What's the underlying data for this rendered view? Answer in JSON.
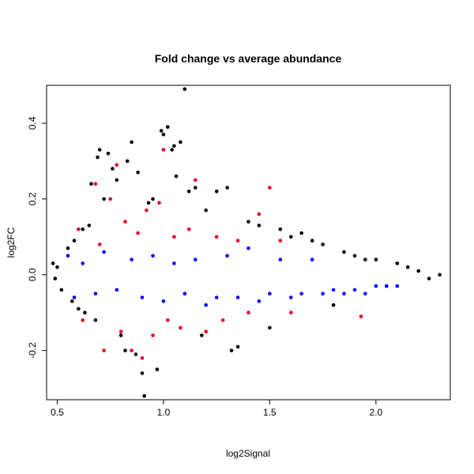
{
  "chart_data": {
    "type": "scatter",
    "title": "Fold change vs average abundance",
    "xlabel": "log2Signal",
    "ylabel": "log2FC",
    "xlim": [
      0.45,
      2.35
    ],
    "ylim": [
      -0.33,
      0.5
    ],
    "x_ticks": [
      0.5,
      1.0,
      1.5,
      2.0
    ],
    "x_tick_labels": [
      "0.5",
      "1.0",
      "1.5",
      "2.0"
    ],
    "y_ticks": [
      -0.2,
      0.0,
      0.2,
      0.4
    ],
    "y_tick_labels": [
      "-0.2",
      "0.0",
      "0.2",
      "0.4"
    ],
    "grid": false,
    "legend": "none",
    "colors": {
      "black": "#000000",
      "blue": "#0000ff",
      "red": "#e8002a"
    },
    "series": [
      {
        "color": "black",
        "points": [
          [
            0.48,
            0.03
          ],
          [
            0.49,
            -0.01
          ],
          [
            0.5,
            0.02
          ],
          [
            0.52,
            -0.04
          ],
          [
            0.55,
            0.07
          ],
          [
            0.57,
            -0.07
          ],
          [
            0.58,
            0.09
          ],
          [
            0.6,
            -0.09
          ],
          [
            0.62,
            0.12
          ],
          [
            0.63,
            -0.1
          ],
          [
            0.65,
            0.13
          ],
          [
            0.66,
            0.24
          ],
          [
            0.68,
            -0.12
          ],
          [
            0.69,
            0.31
          ],
          [
            0.7,
            0.33
          ],
          [
            0.72,
            0.2
          ],
          [
            0.74,
            0.32
          ],
          [
            0.76,
            0.28
          ],
          [
            0.78,
            0.25
          ],
          [
            0.8,
            -0.16
          ],
          [
            0.82,
            -0.2
          ],
          [
            0.83,
            0.3
          ],
          [
            0.85,
            0.35
          ],
          [
            0.87,
            -0.21
          ],
          [
            0.88,
            0.27
          ],
          [
            0.9,
            -0.26
          ],
          [
            0.91,
            -0.32
          ],
          [
            0.93,
            0.19
          ],
          [
            0.95,
            0.2
          ],
          [
            0.97,
            -0.25
          ],
          [
            0.99,
            0.38
          ],
          [
            1.0,
            0.37
          ],
          [
            1.02,
            0.39
          ],
          [
            1.04,
            0.33
          ],
          [
            1.05,
            0.34
          ],
          [
            1.06,
            0.26
          ],
          [
            1.08,
            0.35
          ],
          [
            1.1,
            0.49
          ],
          [
            1.12,
            0.22
          ],
          [
            1.15,
            0.23
          ],
          [
            1.18,
            -0.16
          ],
          [
            1.2,
            0.17
          ],
          [
            1.25,
            0.22
          ],
          [
            1.3,
            0.23
          ],
          [
            1.32,
            -0.2
          ],
          [
            1.35,
            -0.19
          ],
          [
            1.4,
            0.14
          ],
          [
            1.45,
            0.13
          ],
          [
            1.5,
            -0.14
          ],
          [
            1.55,
            0.12
          ],
          [
            1.6,
            0.1
          ],
          [
            1.65,
            0.11
          ],
          [
            1.7,
            0.09
          ],
          [
            1.75,
            0.08
          ],
          [
            1.8,
            -0.08
          ],
          [
            1.85,
            0.06
          ],
          [
            1.9,
            0.05
          ],
          [
            1.95,
            0.04
          ],
          [
            2.0,
            0.04
          ],
          [
            2.05,
            -0.03
          ],
          [
            2.1,
            0.03
          ],
          [
            2.15,
            0.02
          ],
          [
            2.2,
            0.01
          ],
          [
            2.25,
            -0.01
          ],
          [
            2.3,
            0.0
          ]
        ]
      },
      {
        "color": "blue",
        "points": [
          [
            0.55,
            0.05
          ],
          [
            0.58,
            -0.06
          ],
          [
            0.62,
            0.03
          ],
          [
            0.68,
            -0.05
          ],
          [
            0.72,
            0.06
          ],
          [
            0.78,
            -0.04
          ],
          [
            0.85,
            0.04
          ],
          [
            0.9,
            -0.06
          ],
          [
            0.95,
            0.05
          ],
          [
            1.0,
            -0.07
          ],
          [
            1.05,
            0.03
          ],
          [
            1.1,
            -0.05
          ],
          [
            1.15,
            0.04
          ],
          [
            1.2,
            -0.08
          ],
          [
            1.25,
            -0.06
          ],
          [
            1.3,
            0.05
          ],
          [
            1.35,
            -0.06
          ],
          [
            1.4,
            0.07
          ],
          [
            1.45,
            -0.07
          ],
          [
            1.5,
            -0.05
          ],
          [
            1.55,
            0.04
          ],
          [
            1.6,
            -0.06
          ],
          [
            1.65,
            -0.05
          ],
          [
            1.7,
            0.04
          ],
          [
            1.75,
            -0.05
          ],
          [
            1.8,
            -0.04
          ],
          [
            1.85,
            -0.05
          ],
          [
            1.9,
            -0.04
          ],
          [
            1.95,
            -0.05
          ],
          [
            2.0,
            -0.03
          ],
          [
            2.05,
            -0.03
          ],
          [
            2.1,
            -0.03
          ]
        ]
      },
      {
        "color": "red",
        "points": [
          [
            0.6,
            0.12
          ],
          [
            0.62,
            -0.12
          ],
          [
            0.68,
            0.24
          ],
          [
            0.7,
            0.08
          ],
          [
            0.72,
            -0.2
          ],
          [
            0.75,
            0.2
          ],
          [
            0.78,
            0.29
          ],
          [
            0.8,
            -0.15
          ],
          [
            0.82,
            0.14
          ],
          [
            0.85,
            -0.2
          ],
          [
            0.88,
            0.11
          ],
          [
            0.9,
            -0.22
          ],
          [
            0.92,
            0.17
          ],
          [
            0.95,
            -0.16
          ],
          [
            0.98,
            0.19
          ],
          [
            1.0,
            0.33
          ],
          [
            1.02,
            -0.12
          ],
          [
            1.05,
            0.1
          ],
          [
            1.08,
            -0.14
          ],
          [
            1.12,
            0.12
          ],
          [
            1.15,
            0.25
          ],
          [
            1.2,
            -0.15
          ],
          [
            1.25,
            0.1
          ],
          [
            1.28,
            -0.12
          ],
          [
            1.35,
            0.09
          ],
          [
            1.4,
            -0.1
          ],
          [
            1.45,
            0.16
          ],
          [
            1.5,
            0.23
          ],
          [
            1.55,
            0.09
          ],
          [
            1.6,
            -0.1
          ],
          [
            1.93,
            -0.11
          ]
        ]
      }
    ]
  }
}
